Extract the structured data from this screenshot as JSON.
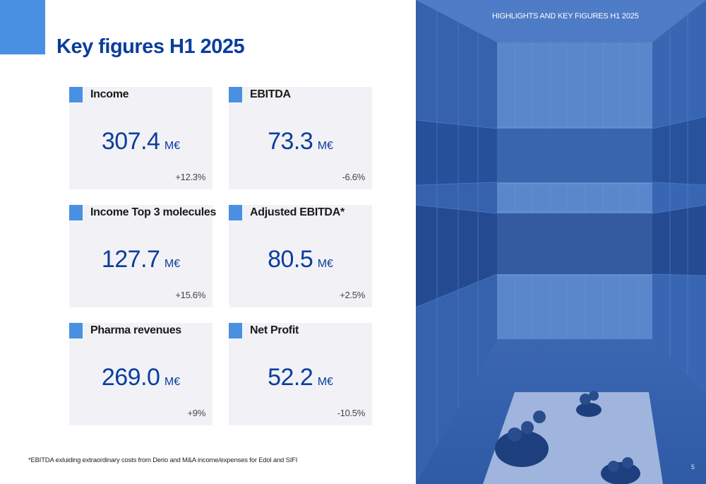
{
  "page": {
    "title": "Key figures H1 2025",
    "header": "HIGHLIGHTS AND KEY FIGURES H1 2025",
    "footnote": "*EBITDA exluiding extraordinary costs from Derio and M&A income/expenses for Edol and SIFI",
    "page_number": "5"
  },
  "cards": [
    {
      "label": "Income",
      "value": "307.4",
      "unit": "M€",
      "change": "+12.3%"
    },
    {
      "label": "EBITDA",
      "value": "73.3",
      "unit": "M€",
      "change": "-6.6%"
    },
    {
      "label": "Income Top 3 molecules",
      "value": "127.7",
      "unit": "M€",
      "change": "+15.6%"
    },
    {
      "label": "Adjusted EBITDA*",
      "value": "80.5",
      "unit": "M€",
      "change": "+2.5%"
    },
    {
      "label": "Pharma revenues",
      "value": "269.0",
      "unit": "M€",
      "change": "+9%"
    },
    {
      "label": "Net Profit",
      "value": "52.2",
      "unit": "M€",
      "change": "-10.5%"
    }
  ],
  "colors": {
    "title_blue": "#0a3d9e",
    "accent_blue": "#4a90e2",
    "card_bg": "#f2f2f6",
    "photo_tint": "#3a68b6"
  }
}
